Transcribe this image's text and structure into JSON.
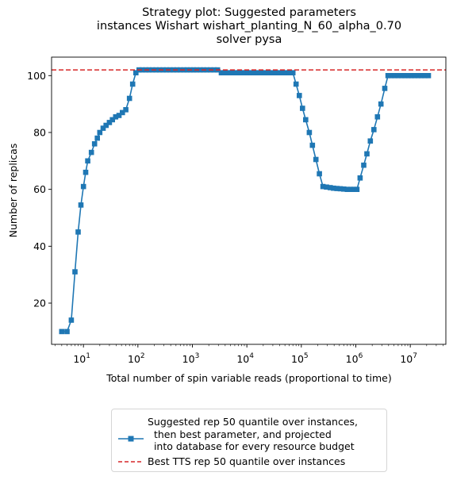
{
  "title": {
    "lines": [
      "Strategy plot: Suggested parameters",
      "instances Wishart wishart_planting_N_60_alpha_0.70",
      "solver pysa"
    ]
  },
  "chart_data": {
    "type": "line",
    "xlabel": "Total number of spin variable reads (proportional to time)",
    "ylabel": "Number of replicas",
    "xscale": "log",
    "xlim": [
      2.6,
      45000000
    ],
    "ylim": [
      5.5,
      106.5
    ],
    "x_ticks": [
      {
        "value": 10,
        "base": "10",
        "exp": "1"
      },
      {
        "value": 100,
        "base": "10",
        "exp": "2"
      },
      {
        "value": 1000,
        "base": "10",
        "exp": "3"
      },
      {
        "value": 10000,
        "base": "10",
        "exp": "4"
      },
      {
        "value": 100000,
        "base": "10",
        "exp": "5"
      },
      {
        "value": 1000000,
        "base": "10",
        "exp": "6"
      },
      {
        "value": 10000000,
        "base": "10",
        "exp": "7"
      }
    ],
    "y_ticks": [
      "20",
      "40",
      "60",
      "80",
      "100"
    ],
    "grid": false,
    "legend_position": "below",
    "colors": {
      "series": "#1f77b4",
      "reference": "#d62728"
    },
    "series": [
      {
        "name": "Suggested rep 50 quantile over instances,\n  then best parameter, and projected\n  into database for every resource budget",
        "marker": "square",
        "x": [
          4,
          5,
          6,
          7,
          8,
          9,
          10,
          11,
          12,
          14,
          16,
          18,
          20,
          23,
          26,
          30,
          34,
          39,
          45,
          52,
          60,
          70,
          80,
          92,
          105,
          120,
          140,
          160,
          185,
          215,
          250,
          290,
          335,
          390,
          450,
          520,
          600,
          700,
          800,
          920,
          1050,
          1200,
          1400,
          1600,
          1850,
          2150,
          2500,
          2900,
          3400,
          3900,
          4500,
          5200,
          6000,
          7000,
          8000,
          9200,
          10500,
          12000,
          14000,
          16000,
          18500,
          21500,
          25000,
          29000,
          34000,
          39000,
          45000,
          52000,
          60000,
          70000,
          80000,
          92000,
          105000,
          120000,
          140000,
          160000,
          185000,
          215000,
          250000,
          290000,
          340000,
          390000,
          450000,
          520000,
          600000,
          700000,
          800000,
          920000,
          1050000,
          1200000,
          1400000,
          1600000,
          1850000,
          2150000,
          2500000,
          2900000,
          3400000,
          3900000,
          4500000,
          5200000,
          6000000,
          7000000,
          8000000,
          9200000,
          10500000,
          12000000,
          14000000,
          16000000,
          18500000,
          21500000
        ],
        "y": [
          10,
          10,
          14,
          31,
          45,
          54.5,
          61,
          66,
          70,
          73,
          76,
          78,
          80,
          81.5,
          82.5,
          83.5,
          84.5,
          85.5,
          86,
          87,
          88,
          92,
          97,
          101,
          102,
          102,
          102,
          102,
          102,
          102,
          102,
          102,
          102,
          102,
          102,
          102,
          102,
          102,
          102,
          102,
          102,
          102,
          102,
          102,
          102,
          102,
          102,
          102,
          101,
          101,
          101,
          101,
          101,
          101,
          101,
          101,
          101,
          101,
          101,
          101,
          101,
          101,
          101,
          101,
          101,
          101,
          101,
          101,
          101,
          101,
          97,
          93,
          88.5,
          84.5,
          80,
          75.5,
          70.5,
          65.5,
          61,
          60.8,
          60.6,
          60.4,
          60.3,
          60.2,
          60.1,
          60,
          60,
          60,
          60,
          64,
          68.5,
          72.5,
          77,
          81,
          85.5,
          90,
          95.5,
          100,
          100,
          100,
          100,
          100,
          100,
          100,
          100,
          100,
          100,
          100,
          100,
          100
        ]
      },
      {
        "name": "Best TTS rep 50 quantile over instances",
        "style": "dashed",
        "hline": 102
      }
    ]
  }
}
